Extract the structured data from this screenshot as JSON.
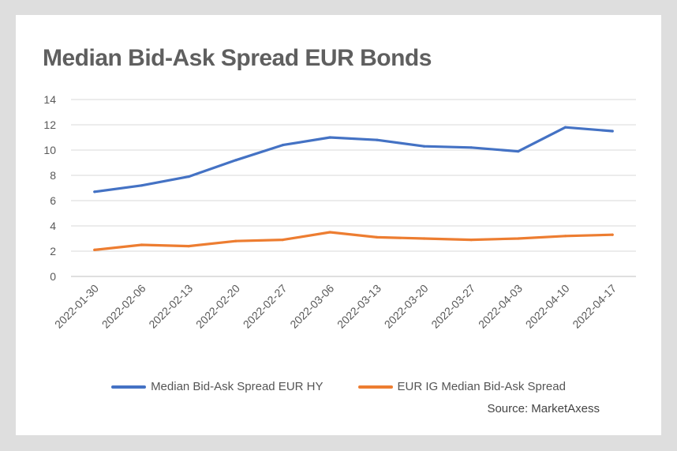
{
  "title": "Median Bid-Ask Spread EUR Bonds",
  "source": "Source: MarketAxess",
  "colors": {
    "background": "#dedede",
    "card": "#ffffff",
    "grid": "#d9d9d9",
    "axis_text": "#595959"
  },
  "chart_data": {
    "type": "line",
    "title": "Median Bid-Ask Spread EUR Bonds",
    "xlabel": "",
    "ylabel": "",
    "ylim": [
      0,
      14
    ],
    "yticks": [
      0,
      2,
      4,
      6,
      8,
      10,
      12,
      14
    ],
    "grid": true,
    "legend_position": "bottom",
    "categories": [
      "2022-01-30",
      "2022-02-06",
      "2022-02-13",
      "2022-02-20",
      "2022-02-27",
      "2022-03-06",
      "2022-03-13",
      "2022-03-20",
      "2022-03-27",
      "2022-04-03",
      "2022-04-10",
      "2022-04-17"
    ],
    "series": [
      {
        "name": "Median Bid-Ask Spread EUR HY",
        "color": "#4472c4",
        "values": [
          6.7,
          7.2,
          7.9,
          9.2,
          10.4,
          11.0,
          10.8,
          10.3,
          10.2,
          9.9,
          11.8,
          11.5
        ]
      },
      {
        "name": "EUR IG Median Bid-Ask Spread",
        "color": "#ed7d31",
        "values": [
          2.1,
          2.5,
          2.4,
          2.8,
          2.9,
          3.5,
          3.1,
          3.0,
          2.9,
          3.0,
          3.2,
          3.3
        ]
      }
    ]
  }
}
